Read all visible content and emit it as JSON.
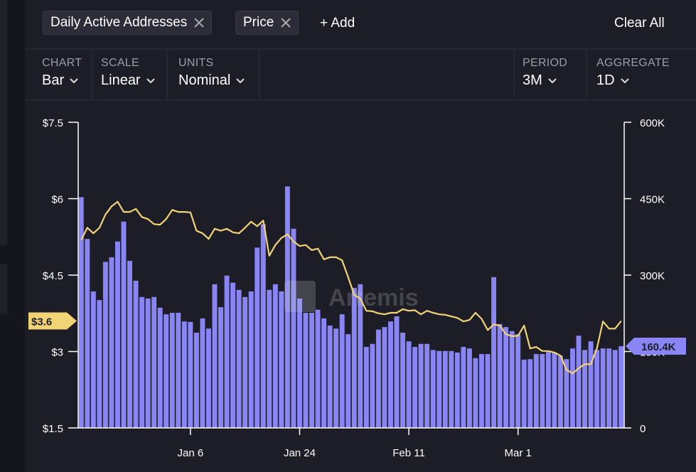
{
  "ui": {
    "tabs": [
      "Daily Active Addresses",
      "Price"
    ],
    "add": "+ Add",
    "clear": "Clear All",
    "controls": [
      {
        "label": "CHART",
        "value": "Bar"
      },
      {
        "label": "SCALE",
        "value": "Linear"
      },
      {
        "label": "UNITS",
        "value": "Nominal"
      },
      {
        "label": "PERIOD",
        "value": "3M"
      },
      {
        "label": "AGGREGATE",
        "value": "1D"
      }
    ],
    "watermark": "Artemis"
  },
  "chart_data": {
    "type": "combo",
    "categories": [
      null,
      null,
      null,
      null,
      null,
      null,
      null,
      null,
      null,
      null,
      null,
      null,
      null,
      null,
      null,
      null,
      null,
      null,
      "Jan 6",
      null,
      null,
      null,
      null,
      null,
      null,
      null,
      null,
      null,
      null,
      null,
      null,
      null,
      null,
      null,
      null,
      null,
      "Jan 24",
      null,
      null,
      null,
      null,
      null,
      null,
      null,
      null,
      null,
      null,
      null,
      null,
      null,
      null,
      null,
      null,
      null,
      "Feb 11",
      null,
      null,
      null,
      null,
      null,
      null,
      null,
      null,
      null,
      null,
      null,
      null,
      null,
      null,
      null,
      null,
      null,
      "Mar 1",
      null,
      null,
      null,
      null,
      null,
      null,
      null,
      null,
      null,
      null,
      null,
      null,
      null,
      null,
      null,
      null,
      null
    ],
    "series": [
      {
        "name": "Daily Active Addresses",
        "type": "bar",
        "axis": "y2",
        "color": "#8985f4",
        "values": [
          453000,
          371000,
          268000,
          251000,
          326000,
          335000,
          366000,
          405000,
          328000,
          289000,
          257000,
          254000,
          257000,
          236000,
          223000,
          226000,
          226000,
          209000,
          208000,
          187000,
          215000,
          195000,
          282000,
          237000,
          299000,
          285000,
          271000,
          257000,
          268000,
          354000,
          400000,
          271000,
          282000,
          268000,
          474000,
          391000,
          254000,
          226000,
          226000,
          232000,
          215000,
          201000,
          195000,
          223000,
          184000,
          275000,
          282000,
          159000,
          165000,
          193000,
          198000,
          209000,
          219000,
          187000,
          170000,
          159000,
          165000,
          165000,
          153000,
          151000,
          151000,
          151000,
          148000,
          159000,
          156000,
          137000,
          145000,
          145000,
          296000,
          204000,
          198000,
          190000,
          184000,
          134000,
          135000,
          145000,
          145000,
          149000,
          148000,
          142000,
          135000,
          156000,
          181000,
          153000,
          170000,
          153000,
          156000,
          156000,
          153000,
          160400
        ],
        "value_labels": [
          null,
          null,
          null,
          null,
          null,
          null,
          null,
          null,
          null,
          null,
          null,
          null,
          null,
          null,
          null,
          null,
          null,
          null,
          null,
          null,
          null,
          null,
          null,
          null,
          null,
          null,
          null,
          null,
          null,
          null,
          null,
          null,
          null,
          null,
          null,
          null,
          null,
          null,
          null,
          null,
          null,
          null,
          null,
          null,
          null,
          null,
          null,
          null,
          null,
          null,
          null,
          null,
          null,
          null,
          null,
          null,
          null,
          null,
          null,
          null,
          null,
          null,
          null,
          null,
          null,
          null,
          null,
          null,
          null,
          null,
          null,
          null,
          null,
          null,
          null,
          null,
          null,
          null,
          null,
          null,
          null,
          null,
          null,
          null,
          null,
          null,
          null,
          null,
          null,
          "160.4K"
        ]
      },
      {
        "name": "Price",
        "type": "line",
        "axis": "y",
        "color": "#f2d477",
        "values": [
          5.19,
          5.43,
          5.32,
          5.43,
          5.69,
          5.85,
          5.94,
          5.74,
          5.74,
          5.8,
          5.64,
          5.6,
          5.5,
          5.49,
          5.6,
          5.78,
          5.74,
          5.74,
          5.73,
          5.37,
          5.32,
          5.21,
          5.41,
          5.37,
          5.41,
          5.34,
          5.32,
          5.43,
          5.55,
          5.46,
          5.57,
          4.88,
          5.09,
          5.23,
          5.3,
          5.16,
          5.07,
          5.09,
          4.99,
          5.02,
          4.81,
          4.85,
          4.85,
          4.79,
          4.46,
          4.11,
          4.04,
          3.8,
          3.79,
          3.75,
          3.73,
          3.76,
          3.76,
          3.83,
          3.8,
          3.81,
          3.73,
          3.8,
          3.76,
          3.73,
          3.72,
          3.69,
          3.66,
          3.59,
          3.62,
          3.76,
          3.64,
          3.42,
          3.53,
          3.51,
          3.34,
          3.3,
          3.31,
          3.51,
          3.06,
          3.09,
          3.01,
          3.01,
          2.98,
          2.92,
          2.64,
          2.57,
          2.67,
          2.75,
          2.75,
          3.06,
          3.59,
          3.45,
          3.45,
          3.6
        ],
        "value_labels": [
          null,
          null,
          null,
          null,
          null,
          null,
          null,
          null,
          null,
          null,
          null,
          null,
          null,
          null,
          null,
          null,
          null,
          null,
          null,
          null,
          null,
          null,
          null,
          null,
          null,
          null,
          null,
          null,
          null,
          null,
          null,
          null,
          null,
          null,
          null,
          null,
          null,
          null,
          null,
          null,
          null,
          null,
          null,
          null,
          null,
          null,
          null,
          null,
          null,
          null,
          null,
          null,
          null,
          null,
          null,
          null,
          null,
          null,
          null,
          null,
          null,
          null,
          null,
          null,
          null,
          null,
          null,
          null,
          null,
          null,
          null,
          null,
          null,
          null,
          null,
          null,
          null,
          null,
          null,
          null,
          null,
          null,
          null,
          null,
          null,
          null,
          null,
          null,
          null,
          "$3.6"
        ]
      }
    ],
    "ylim": [
      1.5,
      7.5
    ],
    "yticks": [
      {
        "value": 1.5,
        "label": "$1.5"
      },
      {
        "value": 3,
        "label": "$3"
      },
      {
        "value": 4.5,
        "label": "$4.5"
      },
      {
        "value": 6,
        "label": "$6"
      },
      {
        "value": 7.5,
        "label": "$7.5"
      }
    ],
    "y2lim": [
      0,
      600000
    ],
    "y2ticks": [
      0,
      {
        "value": 150000,
        "label": "150K"
      },
      {
        "value": 300000,
        "label": "300K"
      },
      {
        "value": 450000,
        "label": "450K"
      },
      {
        "value": 600000,
        "label": "600K"
      }
    ]
  }
}
